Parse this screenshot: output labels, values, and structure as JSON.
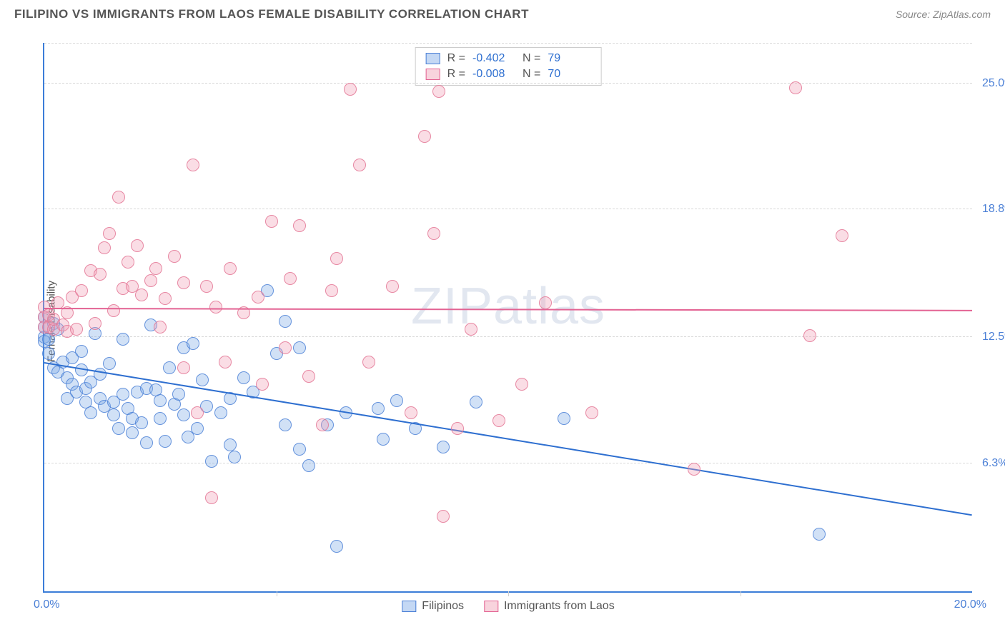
{
  "header": {
    "title": "FILIPINO VS IMMIGRANTS FROM LAOS FEMALE DISABILITY CORRELATION CHART",
    "source_label": "Source: ",
    "source_name": "ZipAtlas.com"
  },
  "chart": {
    "type": "scatter",
    "ylabel": "Female Disability",
    "watermark": "ZIPatlas",
    "background_color": "#ffffff",
    "grid_color": "#d8d8d8",
    "axis_color": "#3b7dd8",
    "label_color": "#4a7fd6",
    "xlim": [
      0.0,
      20.0
    ],
    "ylim": [
      0.0,
      27.0
    ],
    "xlim_labels": {
      "min": "0.0%",
      "max": "20.0%"
    },
    "ytick_values": [
      6.3,
      12.5,
      18.8,
      25.0
    ],
    "ytick_labels": [
      "6.3%",
      "12.5%",
      "18.8%",
      "25.0%"
    ],
    "xtick_values": [
      5.0,
      10.0,
      15.0
    ],
    "marker_radius": 9,
    "series": [
      {
        "key": "a",
        "name": "Filipinos",
        "fill_color": "rgba(124,169,230,0.35)",
        "stroke_color": "#4a7fd6",
        "R": "-0.402",
        "N": "79",
        "trend": {
          "x1": 0.0,
          "y1": 11.2,
          "x2": 20.0,
          "y2": 3.7,
          "color": "#2e6fd0",
          "width": 2
        },
        "points": [
          [
            0.0,
            13.5
          ],
          [
            0.0,
            13.0
          ],
          [
            0.0,
            12.5
          ],
          [
            0.0,
            12.3
          ],
          [
            0.1,
            12.4
          ],
          [
            0.1,
            11.7
          ],
          [
            0.2,
            13.2
          ],
          [
            0.2,
            11.0
          ],
          [
            0.3,
            12.9
          ],
          [
            0.3,
            10.8
          ],
          [
            0.4,
            11.3
          ],
          [
            0.5,
            10.5
          ],
          [
            0.5,
            9.5
          ],
          [
            0.6,
            11.5
          ],
          [
            0.6,
            10.2
          ],
          [
            0.7,
            9.8
          ],
          [
            0.8,
            11.8
          ],
          [
            0.8,
            10.9
          ],
          [
            0.9,
            10.0
          ],
          [
            0.9,
            9.3
          ],
          [
            1.0,
            10.3
          ],
          [
            1.0,
            8.8
          ],
          [
            1.1,
            12.7
          ],
          [
            1.2,
            9.5
          ],
          [
            1.2,
            10.7
          ],
          [
            1.3,
            9.1
          ],
          [
            1.4,
            11.2
          ],
          [
            1.5,
            9.3
          ],
          [
            1.5,
            8.7
          ],
          [
            1.6,
            8.0
          ],
          [
            1.7,
            12.4
          ],
          [
            1.7,
            9.7
          ],
          [
            1.8,
            9.0
          ],
          [
            1.9,
            8.5
          ],
          [
            1.9,
            7.8
          ],
          [
            2.0,
            9.8
          ],
          [
            2.1,
            8.3
          ],
          [
            2.2,
            10.0
          ],
          [
            2.2,
            7.3
          ],
          [
            2.3,
            13.1
          ],
          [
            2.4,
            9.9
          ],
          [
            2.5,
            9.4
          ],
          [
            2.5,
            8.5
          ],
          [
            2.6,
            7.4
          ],
          [
            2.7,
            11.0
          ],
          [
            2.8,
            9.2
          ],
          [
            2.9,
            9.7
          ],
          [
            3.0,
            12.0
          ],
          [
            3.0,
            8.7
          ],
          [
            3.1,
            7.6
          ],
          [
            3.2,
            12.2
          ],
          [
            3.3,
            8.0
          ],
          [
            3.4,
            10.4
          ],
          [
            3.5,
            9.1
          ],
          [
            3.6,
            6.4
          ],
          [
            3.8,
            8.8
          ],
          [
            4.0,
            9.5
          ],
          [
            4.0,
            7.2
          ],
          [
            4.1,
            6.6
          ],
          [
            4.3,
            10.5
          ],
          [
            4.5,
            9.8
          ],
          [
            4.8,
            14.8
          ],
          [
            5.0,
            11.7
          ],
          [
            5.2,
            13.3
          ],
          [
            5.2,
            8.2
          ],
          [
            5.5,
            12.0
          ],
          [
            5.5,
            7.0
          ],
          [
            5.7,
            6.2
          ],
          [
            6.1,
            8.2
          ],
          [
            6.3,
            2.2
          ],
          [
            6.5,
            8.8
          ],
          [
            7.2,
            9.0
          ],
          [
            7.3,
            7.5
          ],
          [
            7.6,
            9.4
          ],
          [
            8.0,
            8.0
          ],
          [
            8.6,
            7.1
          ],
          [
            9.3,
            9.3
          ],
          [
            11.2,
            8.5
          ],
          [
            16.7,
            2.8
          ]
        ]
      },
      {
        "key": "b",
        "name": "Immigrants from Laos",
        "fill_color": "rgba(240,157,180,0.35)",
        "stroke_color": "#e36393",
        "R": "-0.008",
        "N": "70",
        "trend": {
          "x1": 0.0,
          "y1": 13.9,
          "x2": 20.0,
          "y2": 13.8,
          "color": "#e36393",
          "width": 2
        },
        "points": [
          [
            0.0,
            13.5
          ],
          [
            0.0,
            13.0
          ],
          [
            0.0,
            14.0
          ],
          [
            0.1,
            13.6
          ],
          [
            0.1,
            13.0
          ],
          [
            0.2,
            12.9
          ],
          [
            0.2,
            13.4
          ],
          [
            0.3,
            14.2
          ],
          [
            0.4,
            13.1
          ],
          [
            0.5,
            12.8
          ],
          [
            0.5,
            13.7
          ],
          [
            0.6,
            14.5
          ],
          [
            0.7,
            12.9
          ],
          [
            0.8,
            14.8
          ],
          [
            1.0,
            15.8
          ],
          [
            1.1,
            13.2
          ],
          [
            1.2,
            15.6
          ],
          [
            1.3,
            16.9
          ],
          [
            1.4,
            17.6
          ],
          [
            1.5,
            13.8
          ],
          [
            1.6,
            19.4
          ],
          [
            1.7,
            14.9
          ],
          [
            1.8,
            16.2
          ],
          [
            1.9,
            15.0
          ],
          [
            2.0,
            17.0
          ],
          [
            2.1,
            14.6
          ],
          [
            2.3,
            15.3
          ],
          [
            2.4,
            15.9
          ],
          [
            2.5,
            13.0
          ],
          [
            2.6,
            14.4
          ],
          [
            2.8,
            16.5
          ],
          [
            3.0,
            15.2
          ],
          [
            3.0,
            11.0
          ],
          [
            3.2,
            21.0
          ],
          [
            3.3,
            8.8
          ],
          [
            3.5,
            15.0
          ],
          [
            3.6,
            4.6
          ],
          [
            3.7,
            14.0
          ],
          [
            3.9,
            11.3
          ],
          [
            4.0,
            15.9
          ],
          [
            4.3,
            13.7
          ],
          [
            4.6,
            14.5
          ],
          [
            4.7,
            10.2
          ],
          [
            4.9,
            18.2
          ],
          [
            5.2,
            12.0
          ],
          [
            5.3,
            15.4
          ],
          [
            5.5,
            18.0
          ],
          [
            5.7,
            10.6
          ],
          [
            6.0,
            8.2
          ],
          [
            6.2,
            14.8
          ],
          [
            6.3,
            16.4
          ],
          [
            6.6,
            24.7
          ],
          [
            6.8,
            21.0
          ],
          [
            7.0,
            11.3
          ],
          [
            7.5,
            15.0
          ],
          [
            7.9,
            8.8
          ],
          [
            8.2,
            22.4
          ],
          [
            8.4,
            17.6
          ],
          [
            8.5,
            24.6
          ],
          [
            8.6,
            3.7
          ],
          [
            8.9,
            8.0
          ],
          [
            9.2,
            12.9
          ],
          [
            9.8,
            8.4
          ],
          [
            10.3,
            10.2
          ],
          [
            10.8,
            14.2
          ],
          [
            11.8,
            8.8
          ],
          [
            14.0,
            6.0
          ],
          [
            16.2,
            24.8
          ],
          [
            16.5,
            12.6
          ],
          [
            17.2,
            17.5
          ]
        ]
      }
    ],
    "legend_top": {
      "labels": {
        "r": "R =",
        "n": "N ="
      }
    },
    "legend_bottom": {
      "items": [
        "Filipinos",
        "Immigrants from Laos"
      ]
    }
  }
}
